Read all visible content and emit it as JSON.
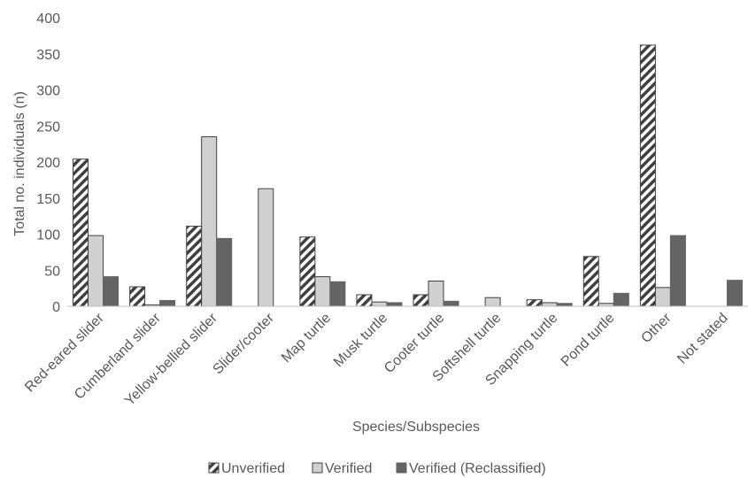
{
  "chart_data": {
    "type": "bar",
    "title": "",
    "xlabel": "Species/Subspecies",
    "ylabel": "Total no. individuals (n)",
    "ylim": [
      0,
      400
    ],
    "yticks": [
      0,
      50,
      100,
      150,
      200,
      250,
      300,
      350,
      400
    ],
    "grid": false,
    "legend_position": "bottom",
    "categories": [
      "Red-eared slider",
      "Cumberland slider",
      "Yellow-bellied slider",
      "Slider/cooter",
      "Map turtle",
      "Musk turtle",
      "Cooter turtle",
      "Softshell turtle",
      "Snapping turtle",
      "Pond turtle",
      "Other",
      "Not stated"
    ],
    "series": [
      {
        "name": "Unverified",
        "color": "#ffffff",
        "pattern": "diagonal-stripes",
        "stroke": "#404040",
        "values": [
          204,
          27,
          111,
          0,
          96,
          16,
          16,
          0,
          9,
          69,
          362,
          0
        ]
      },
      {
        "name": "Verified",
        "color": "#d0d0d0",
        "stroke": "#404040",
        "values": [
          98,
          2,
          235,
          163,
          41,
          6,
          35,
          12,
          5,
          4,
          26,
          0
        ]
      },
      {
        "name": "Verified (Reclassified)",
        "color": "#646464",
        "stroke": "#646464",
        "values": [
          41,
          8,
          94,
          0,
          34,
          5,
          7,
          0,
          4,
          18,
          98,
          36
        ]
      }
    ]
  }
}
